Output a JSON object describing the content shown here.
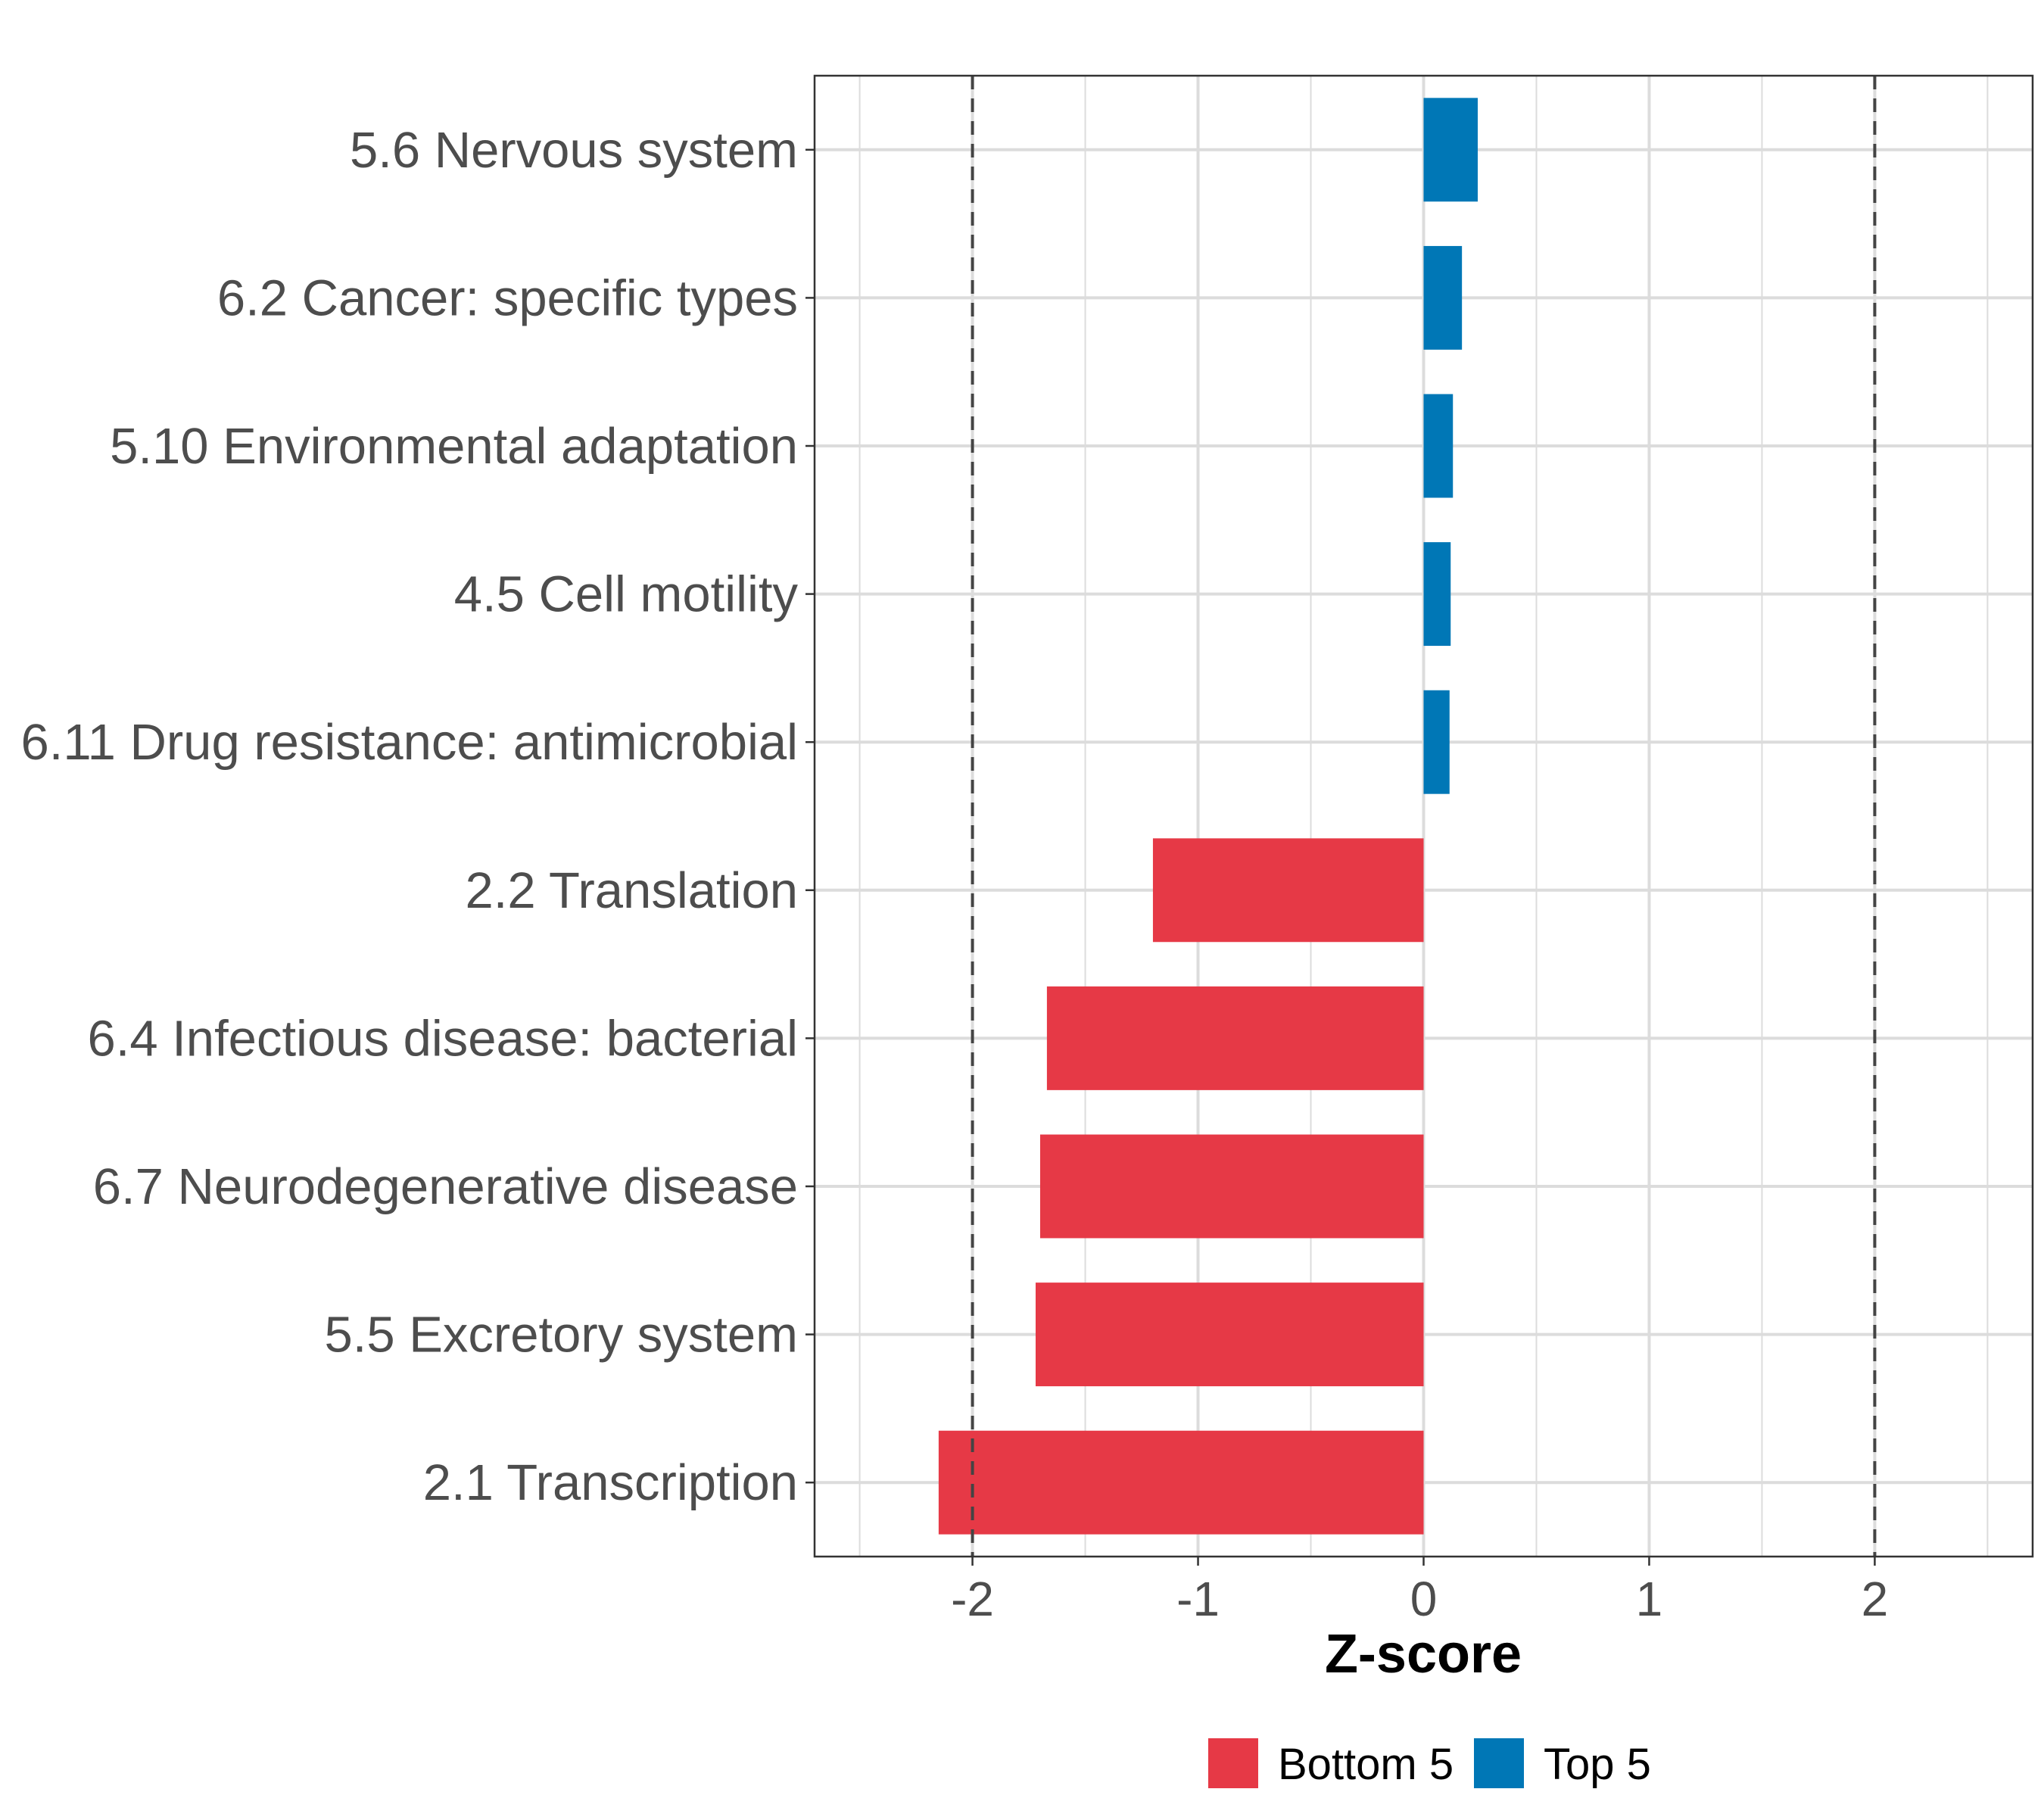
{
  "chart_data": {
    "type": "bar",
    "orientation": "horizontal",
    "xlabel": "Z-score",
    "ylabel": "",
    "xlim": [
      -2.7,
      2.7
    ],
    "xticks": [
      -2,
      -1,
      0,
      1,
      2
    ],
    "xtick_labels": [
      "-2",
      "-1",
      "0",
      "1",
      "2"
    ],
    "reference_lines": [
      -2,
      2
    ],
    "grid": true,
    "legend_position": "bottom",
    "colors": {
      "Bottom 5": "#e63946",
      "Top 5": "#0077b6"
    },
    "legend": [
      {
        "name": "Bottom 5",
        "color": "#e63946"
      },
      {
        "name": "Top 5",
        "color": "#0077b6"
      }
    ],
    "categories": [
      "5.6 Nervous system",
      "6.2 Cancer: specific types",
      "5.10 Environmental adaptation",
      "4.5 Cell motility",
      "6.11 Drug resistance: antimicrobial",
      "2.2 Translation",
      "6.4 Infectious disease: bacterial",
      "6.7 Neurodegenerative disease",
      "5.5 Excretory system",
      "2.1 Transcription"
    ],
    "values": [
      0.24,
      0.17,
      0.13,
      0.12,
      0.115,
      -1.2,
      -1.67,
      -1.7,
      -1.72,
      -2.15
    ],
    "groups": [
      "Top 5",
      "Top 5",
      "Top 5",
      "Top 5",
      "Top 5",
      "Bottom 5",
      "Bottom 5",
      "Bottom 5",
      "Bottom 5",
      "Bottom 5"
    ]
  }
}
